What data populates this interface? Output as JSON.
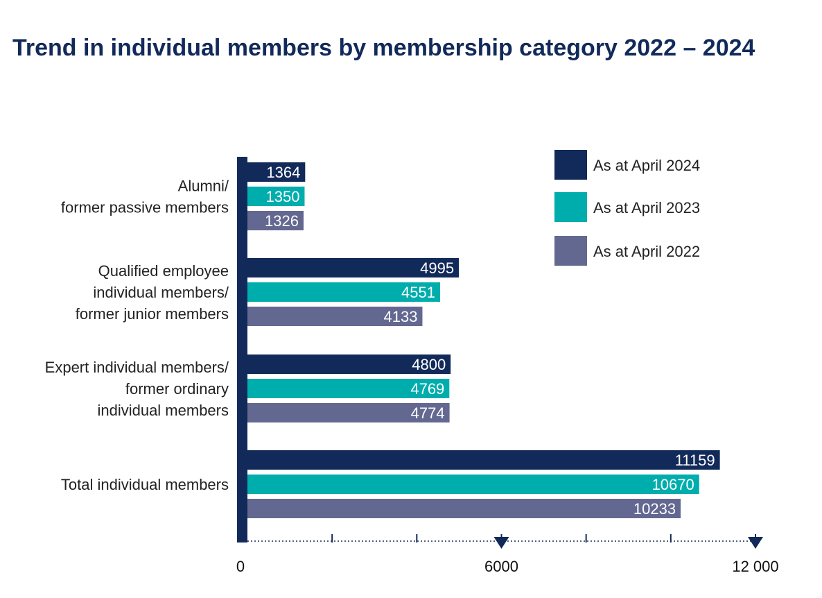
{
  "chart_data": {
    "type": "bar",
    "orientation": "horizontal",
    "title": "Trend in individual members by membership category 2022 – 2024",
    "categories": [
      [
        "Alumni/",
        "former passive members"
      ],
      [
        "Qualified employee",
        "individual members/",
        "former junior members"
      ],
      [
        "Expert individual members/",
        "former ordinary",
        "individual members"
      ],
      [
        "Total individual members"
      ]
    ],
    "series": [
      {
        "name": "As at April 2024",
        "color": "#122a5a",
        "values": [
          1364,
          4995,
          4800,
          11159
        ]
      },
      {
        "name": "As at April 2023",
        "color": "#00adad",
        "values": [
          1350,
          4551,
          4769,
          10670
        ]
      },
      {
        "name": "As at April 2022",
        "color": "#636891",
        "values": [
          1326,
          4133,
          4774,
          10233
        ]
      }
    ],
    "xlim": [
      0,
      12000
    ],
    "xticks": [
      0,
      6000,
      12000
    ],
    "xtick_labels": [
      "0",
      "6000",
      "12 000"
    ],
    "legend_position": "top-right",
    "axis_color": "#122a5a"
  }
}
